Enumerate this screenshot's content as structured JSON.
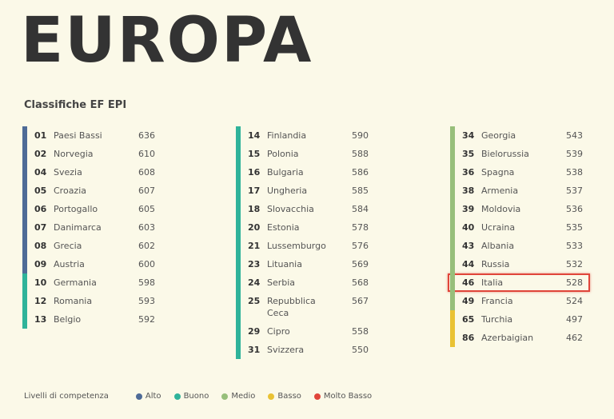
{
  "title": "EUROPA",
  "subtitle": "Classifiche EF EPI",
  "colors": {
    "alto": "#4e6b97",
    "buono": "#2fb39a",
    "medio": "#97bf7a",
    "basso": "#e9c233",
    "molto_basso": "#e0453a",
    "highlight": "#e0453a"
  },
  "columns": [
    {
      "segments": [
        {
          "level": "alto",
          "rows": 8
        },
        {
          "level": "buono",
          "rows": 3
        }
      ],
      "rows": [
        {
          "rank": "01",
          "country": "Paesi Bassi",
          "score": "636"
        },
        {
          "rank": "02",
          "country": "Norvegia",
          "score": "610"
        },
        {
          "rank": "04",
          "country": "Svezia",
          "score": "608"
        },
        {
          "rank": "05",
          "country": "Croazia",
          "score": "607"
        },
        {
          "rank": "06",
          "country": "Portogallo",
          "score": "605"
        },
        {
          "rank": "07",
          "country": "Danimarca",
          "score": "603"
        },
        {
          "rank": "08",
          "country": "Grecia",
          "score": "602"
        },
        {
          "rank": "09",
          "country": "Austria",
          "score": "600"
        },
        {
          "rank": "10",
          "country": "Germania",
          "score": "598"
        },
        {
          "rank": "12",
          "country": "Romania",
          "score": "593"
        },
        {
          "rank": "13",
          "country": "Belgio",
          "score": "592"
        }
      ]
    },
    {
      "segments": [
        {
          "level": "buono",
          "rows": 12
        }
      ],
      "rows": [
        {
          "rank": "14",
          "country": "Finlandia",
          "score": "590"
        },
        {
          "rank": "15",
          "country": "Polonia",
          "score": "588"
        },
        {
          "rank": "16",
          "country": "Bulgaria",
          "score": "586"
        },
        {
          "rank": "17",
          "country": "Ungheria",
          "score": "585"
        },
        {
          "rank": "18",
          "country": "Slovacchia",
          "score": "584"
        },
        {
          "rank": "20",
          "country": "Estonia",
          "score": "578"
        },
        {
          "rank": "21",
          "country": "Lussemburgo",
          "score": "576"
        },
        {
          "rank": "23",
          "country": "Lituania",
          "score": "569"
        },
        {
          "rank": "24",
          "country": "Serbia",
          "score": "568"
        },
        {
          "rank": "25",
          "country": "Repubblica Ceca",
          "score": "567",
          "tall": true
        },
        {
          "rank": "29",
          "country": "Cipro",
          "score": "558"
        },
        {
          "rank": "31",
          "country": "Svizzera",
          "score": "550"
        }
      ]
    },
    {
      "segments": [
        {
          "level": "medio",
          "rows": 10
        },
        {
          "level": "basso",
          "rows": 2
        }
      ],
      "rows": [
        {
          "rank": "34",
          "country": "Georgia",
          "score": "543"
        },
        {
          "rank": "35",
          "country": "Bielorussia",
          "score": "539"
        },
        {
          "rank": "36",
          "country": "Spagna",
          "score": "538"
        },
        {
          "rank": "38",
          "country": "Armenia",
          "score": "537"
        },
        {
          "rank": "39",
          "country": "Moldovia",
          "score": "536"
        },
        {
          "rank": "40",
          "country": "Ucraina",
          "score": "535"
        },
        {
          "rank": "43",
          "country": "Albania",
          "score": "533"
        },
        {
          "rank": "44",
          "country": "Russia",
          "score": "532"
        },
        {
          "rank": "46",
          "country": "Italia",
          "score": "528",
          "highlighted": true
        },
        {
          "rank": "49",
          "country": "Francia",
          "score": "524"
        },
        {
          "rank": "65",
          "country": "Turchia",
          "score": "497"
        },
        {
          "rank": "86",
          "country": "Azerbaigian",
          "score": "462"
        }
      ]
    }
  ],
  "legend": {
    "title": "Livelli di competenza",
    "items": [
      {
        "label": "Alto",
        "color": "#4e6b97"
      },
      {
        "label": "Buono",
        "color": "#2fb39a"
      },
      {
        "label": "Medio",
        "color": "#97bf7a"
      },
      {
        "label": "Basso",
        "color": "#e9c233"
      },
      {
        "label": "Molto Basso",
        "color": "#e0453a"
      }
    ]
  }
}
